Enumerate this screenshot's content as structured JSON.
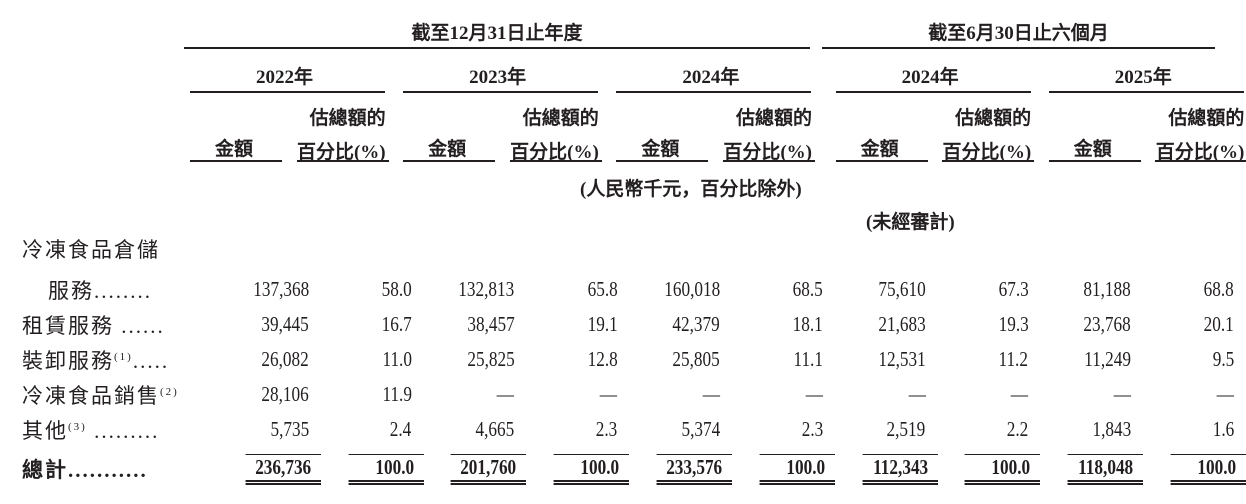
{
  "header": {
    "group_annual": "截至12月31日止年度",
    "group_six_months": "截至6月30日止六個月",
    "years": [
      "2022年",
      "2023年",
      "2024年",
      "2024年",
      "2025年"
    ],
    "amount_label": "金額",
    "pct_label_line1": "估總額的",
    "pct_label_line2": "百分比(%)",
    "unit_note": "(人民幣千元，百分比除外)",
    "unaudited_note": "(未經審計)"
  },
  "rows": [
    {
      "label_line1": "冷凍食品倉儲",
      "label": "服務........",
      "note": "",
      "values": [
        "137,368",
        "58.0",
        "132,813",
        "65.8",
        "160,018",
        "68.5",
        "75,610",
        "67.3",
        "81,188",
        "68.8"
      ]
    },
    {
      "label": "租賃服務 ......",
      "note": "",
      "values": [
        "39,445",
        "16.7",
        "38,457",
        "19.1",
        "42,379",
        "18.1",
        "21,683",
        "19.3",
        "23,768",
        "20.1"
      ]
    },
    {
      "label": "裝卸服務",
      "note": "(1)",
      "suffix": ".....",
      "values": [
        "26,082",
        "11.0",
        "25,825",
        "12.8",
        "25,805",
        "11.1",
        "12,531",
        "11.2",
        "11,249",
        "9.5"
      ]
    },
    {
      "label": "冷凍食品銷售",
      "note": "(2)",
      "suffix": "",
      "values": [
        "28,106",
        "11.9",
        "—",
        "—",
        "—",
        "—",
        "—",
        "—",
        "—",
        "—"
      ]
    },
    {
      "label": "其他",
      "note": "(3)",
      "suffix": " .........",
      "values": [
        "5,735",
        "2.4",
        "4,665",
        "2.3",
        "5,374",
        "2.3",
        "2,519",
        "2.2",
        "1,843",
        "1.6"
      ]
    }
  ],
  "total": {
    "label": "總計...........",
    "values": [
      "236,736",
      "100.0",
      "201,760",
      "100.0",
      "233,576",
      "100.0",
      "112,343",
      "100.0",
      "118,048",
      "100.0"
    ]
  }
}
